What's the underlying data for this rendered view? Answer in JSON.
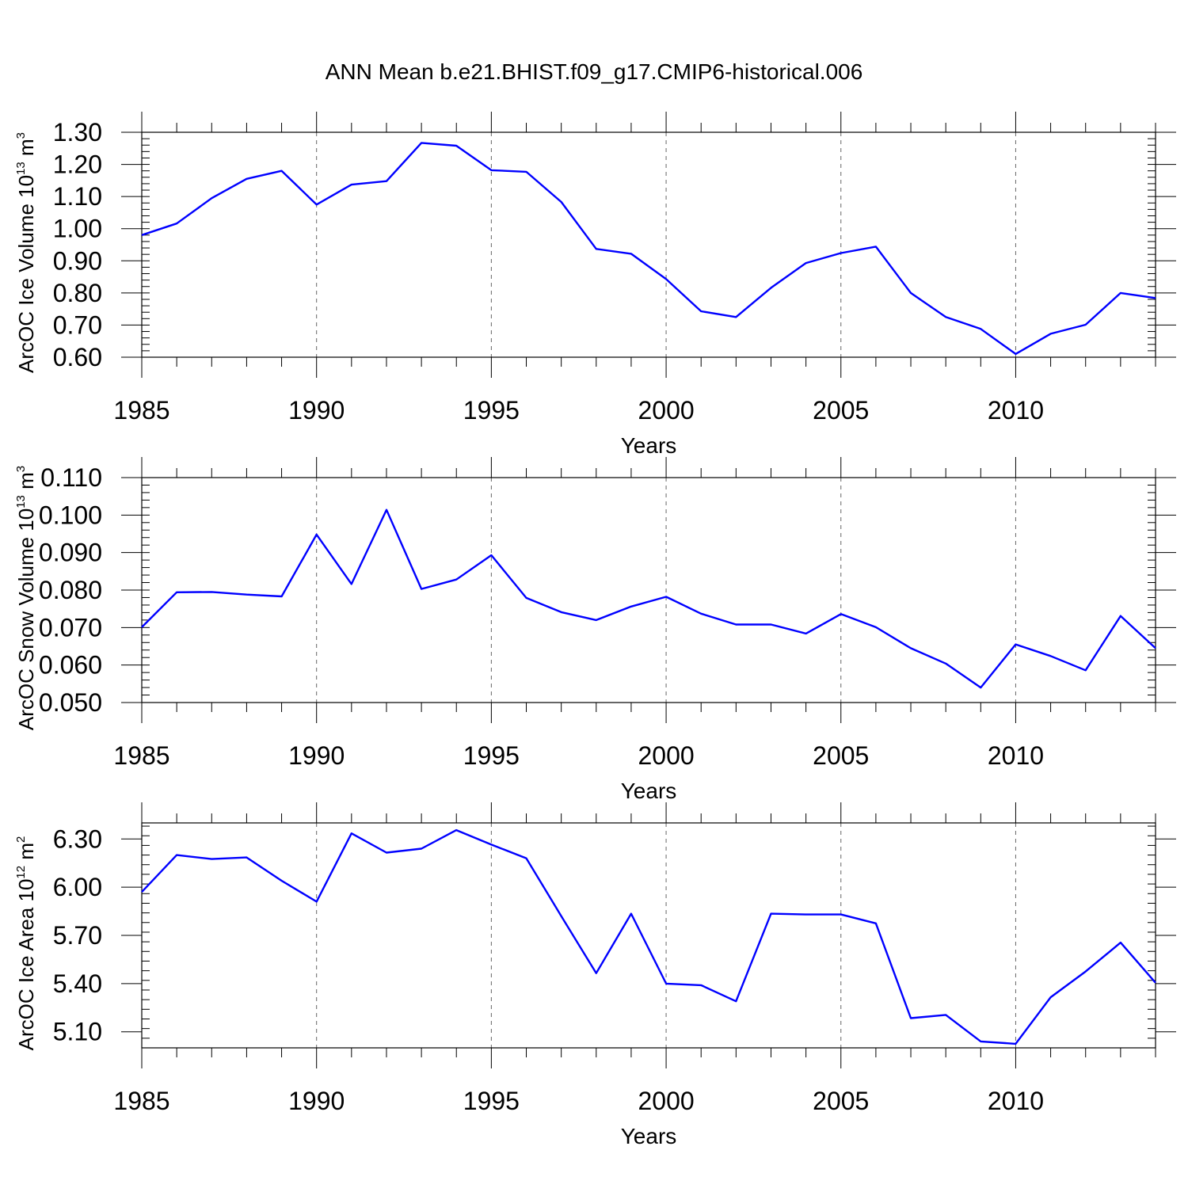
{
  "title": "ANN Mean b.e21.BHIST.f09_g17.CMIP6-historical.006",
  "chart_data": [
    {
      "type": "line",
      "title": "",
      "ylabel": {
        "prefix": "ArcOC Ice Volume 10",
        "exp": "13",
        "unit": " m",
        "unit_exp": "3"
      },
      "xlabel": "Years",
      "xlim": [
        1985,
        2014
      ],
      "ylim": [
        0.6,
        1.3
      ],
      "yticks": [
        "0.60",
        "0.70",
        "0.80",
        "0.90",
        "1.00",
        "1.10",
        "1.20",
        "1.30"
      ],
      "xticks": [
        "1985",
        "1990",
        "1995",
        "2000",
        "2005",
        "2010"
      ],
      "grid": "dashed vertical at major x ticks",
      "line_color": "#0000ff",
      "x": [
        1985,
        1986,
        1987,
        1988,
        1989,
        1990,
        1991,
        1992,
        1993,
        1994,
        1995,
        1996,
        1997,
        1998,
        1999,
        2000,
        2001,
        2002,
        2003,
        2004,
        2005,
        2006,
        2007,
        2008,
        2009,
        2010,
        2011,
        2012,
        2013,
        2014
      ],
      "values": [
        0.98,
        1.016,
        1.095,
        1.155,
        1.18,
        1.075,
        1.137,
        1.148,
        1.267,
        1.258,
        1.182,
        1.177,
        1.083,
        0.937,
        0.922,
        0.843,
        0.743,
        0.725,
        0.816,
        0.893,
        0.924,
        0.944,
        0.8,
        0.725,
        0.688,
        0.61,
        0.673,
        0.701,
        0.8,
        0.784
      ]
    },
    {
      "type": "line",
      "title": "",
      "ylabel": {
        "prefix": "ArcOC Snow Volume 10",
        "exp": "13",
        "unit": " m",
        "unit_exp": "3"
      },
      "xlabel": "Years",
      "xlim": [
        1985,
        2014
      ],
      "ylim": [
        0.05,
        0.11
      ],
      "yticks": [
        "0.050",
        "0.060",
        "0.070",
        "0.080",
        "0.090",
        "0.100",
        "0.110"
      ],
      "xticks": [
        "1985",
        "1990",
        "1995",
        "2000",
        "2005",
        "2010"
      ],
      "grid": "dashed vertical at major x ticks",
      "line_color": "#0000ff",
      "x": [
        1985,
        1986,
        1987,
        1988,
        1989,
        1990,
        1991,
        1992,
        1993,
        1994,
        1995,
        1996,
        1997,
        1998,
        1999,
        2000,
        2001,
        2002,
        2003,
        2004,
        2005,
        2006,
        2007,
        2008,
        2009,
        2010,
        2011,
        2012,
        2013,
        2014
      ],
      "values": [
        0.0701,
        0.0794,
        0.0795,
        0.0788,
        0.0783,
        0.0948,
        0.0816,
        0.1014,
        0.0803,
        0.0828,
        0.0893,
        0.0779,
        0.0741,
        0.072,
        0.0756,
        0.0782,
        0.0737,
        0.0708,
        0.0708,
        0.0684,
        0.0736,
        0.0701,
        0.0645,
        0.0604,
        0.054,
        0.0655,
        0.0624,
        0.0586,
        0.0731,
        0.0645
      ]
    },
    {
      "type": "line",
      "title": "",
      "ylabel": {
        "prefix": "ArcOC Ice Area 10",
        "exp": "12",
        "unit": " m",
        "unit_exp": "2"
      },
      "xlabel": "Years",
      "xlim": [
        1985,
        2014
      ],
      "ylim": [
        5.0,
        6.4
      ],
      "yticks": [
        "5.10",
        "5.40",
        "5.70",
        "6.00",
        "6.30"
      ],
      "xticks": [
        "1985",
        "1990",
        "1995",
        "2000",
        "2005",
        "2010"
      ],
      "grid": "dashed vertical at major x ticks",
      "line_color": "#0000ff",
      "x": [
        1985,
        1986,
        1987,
        1988,
        1989,
        1990,
        1991,
        1992,
        1993,
        1994,
        1995,
        1996,
        1997,
        1998,
        1999,
        2000,
        2001,
        2002,
        2003,
        2004,
        2005,
        2006,
        2007,
        2008,
        2009,
        2010,
        2011,
        2012,
        2013,
        2014
      ],
      "values": [
        5.97,
        6.2,
        6.175,
        6.185,
        6.04,
        5.91,
        6.335,
        6.215,
        6.24,
        6.355,
        6.265,
        6.18,
        5.82,
        5.465,
        5.835,
        5.4,
        5.39,
        5.29,
        5.835,
        5.83,
        5.83,
        5.775,
        5.185,
        5.205,
        5.04,
        5.025,
        5.315,
        5.475,
        5.655,
        5.405
      ]
    }
  ]
}
